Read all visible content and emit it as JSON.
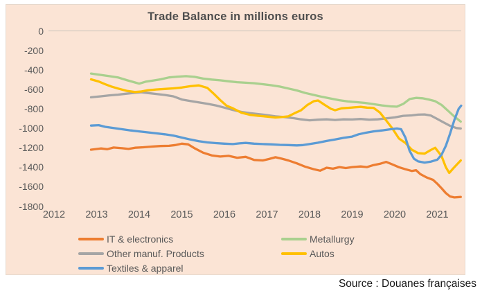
{
  "title": "Trade Balance in millions euros",
  "source": "Source : Douanes françaises",
  "colors": {
    "background": "#FBE4D5",
    "axis_text": "#595959",
    "title_text": "#4E4E4E",
    "zero_line": "#D8CCC2",
    "orange": "#ED7D31",
    "green": "#A9D08E",
    "gray": "#A5A5A5",
    "yellow": "#FFC000",
    "blue": "#5B9BD5"
  },
  "axes": {
    "y_ticks": [
      "0",
      "-200",
      "-400",
      "-600",
      "-800",
      "-1000",
      "-1200",
      "-1400",
      "-1600",
      "-1800"
    ],
    "x_ticks": [
      "2012",
      "2013",
      "2014",
      "2015",
      "2016",
      "2017",
      "2018",
      "2019",
      "2020",
      "2021"
    ]
  },
  "legend": {
    "columns": [
      [
        {
          "label": "IT & electronics",
          "color": "#ED7D31"
        },
        {
          "label": "Other manuf. Products",
          "color": "#A5A5A5"
        },
        {
          "label": "Textiles & apparel",
          "color": "#5B9BD5"
        }
      ],
      [
        {
          "label": "Metallurgy",
          "color": "#A9D08E"
        },
        {
          "label": "Autos",
          "color": "#FFC000"
        }
      ]
    ]
  },
  "chart_data": {
    "type": "line",
    "title": "Trade Balance in millions euros",
    "xlabel": "",
    "ylabel": "millions euros",
    "ylim": [
      -1800,
      0
    ],
    "xlim": [
      2012,
      2021.6
    ],
    "grid": "zero-line-only",
    "legend_position": "bottom",
    "x_unit": "year (monthly data, ~2013-01 to ~2021-08)",
    "series": [
      {
        "name": "IT & electronics",
        "color": "#ED7D31",
        "points": [
          [
            2012.87,
            -1220
          ],
          [
            2013.1,
            -1207
          ],
          [
            2013.25,
            -1215
          ],
          [
            2013.4,
            -1198
          ],
          [
            2013.6,
            -1205
          ],
          [
            2013.75,
            -1212
          ],
          [
            2013.9,
            -1200
          ],
          [
            2014.1,
            -1195
          ],
          [
            2014.3,
            -1188
          ],
          [
            2014.5,
            -1182
          ],
          [
            2014.7,
            -1180
          ],
          [
            2014.85,
            -1172
          ],
          [
            2015.0,
            -1158
          ],
          [
            2015.15,
            -1165
          ],
          [
            2015.3,
            -1205
          ],
          [
            2015.5,
            -1250
          ],
          [
            2015.7,
            -1278
          ],
          [
            2015.9,
            -1290
          ],
          [
            2016.1,
            -1283
          ],
          [
            2016.3,
            -1302
          ],
          [
            2016.5,
            -1293
          ],
          [
            2016.7,
            -1325
          ],
          [
            2016.9,
            -1330
          ],
          [
            2017.05,
            -1315
          ],
          [
            2017.2,
            -1297
          ],
          [
            2017.35,
            -1312
          ],
          [
            2017.5,
            -1330
          ],
          [
            2017.7,
            -1360
          ],
          [
            2017.9,
            -1395
          ],
          [
            2018.1,
            -1420
          ],
          [
            2018.25,
            -1435
          ],
          [
            2018.4,
            -1405
          ],
          [
            2018.55,
            -1415
          ],
          [
            2018.7,
            -1398
          ],
          [
            2018.85,
            -1408
          ],
          [
            2019.0,
            -1398
          ],
          [
            2019.2,
            -1392
          ],
          [
            2019.35,
            -1398
          ],
          [
            2019.5,
            -1378
          ],
          [
            2019.65,
            -1365
          ],
          [
            2019.8,
            -1345
          ],
          [
            2019.95,
            -1372
          ],
          [
            2020.1,
            -1400
          ],
          [
            2020.25,
            -1420
          ],
          [
            2020.4,
            -1438
          ],
          [
            2020.5,
            -1430
          ],
          [
            2020.6,
            -1470
          ],
          [
            2020.75,
            -1505
          ],
          [
            2020.9,
            -1530
          ],
          [
            2021.0,
            -1570
          ],
          [
            2021.1,
            -1615
          ],
          [
            2021.2,
            -1665
          ],
          [
            2021.3,
            -1700
          ],
          [
            2021.4,
            -1710
          ],
          [
            2021.55,
            -1705
          ]
        ]
      },
      {
        "name": "Metallurgy",
        "color": "#A9D08E",
        "points": [
          [
            2012.87,
            -438
          ],
          [
            2013.1,
            -452
          ],
          [
            2013.3,
            -465
          ],
          [
            2013.5,
            -478
          ],
          [
            2013.7,
            -505
          ],
          [
            2013.9,
            -530
          ],
          [
            2014.0,
            -542
          ],
          [
            2014.15,
            -522
          ],
          [
            2014.3,
            -512
          ],
          [
            2014.5,
            -498
          ],
          [
            2014.7,
            -478
          ],
          [
            2014.9,
            -470
          ],
          [
            2015.1,
            -465
          ],
          [
            2015.3,
            -472
          ],
          [
            2015.5,
            -490
          ],
          [
            2015.7,
            -500
          ],
          [
            2015.9,
            -508
          ],
          [
            2016.1,
            -518
          ],
          [
            2016.3,
            -527
          ],
          [
            2016.5,
            -533
          ],
          [
            2016.7,
            -538
          ],
          [
            2016.9,
            -548
          ],
          [
            2017.1,
            -558
          ],
          [
            2017.3,
            -572
          ],
          [
            2017.5,
            -592
          ],
          [
            2017.7,
            -612
          ],
          [
            2017.9,
            -638
          ],
          [
            2018.1,
            -658
          ],
          [
            2018.3,
            -678
          ],
          [
            2018.5,
            -695
          ],
          [
            2018.7,
            -712
          ],
          [
            2018.9,
            -725
          ],
          [
            2019.1,
            -732
          ],
          [
            2019.3,
            -740
          ],
          [
            2019.5,
            -752
          ],
          [
            2019.7,
            -765
          ],
          [
            2019.9,
            -775
          ],
          [
            2020.05,
            -778
          ],
          [
            2020.2,
            -750
          ],
          [
            2020.35,
            -700
          ],
          [
            2020.5,
            -688
          ],
          [
            2020.65,
            -692
          ],
          [
            2020.8,
            -705
          ],
          [
            2020.95,
            -722
          ],
          [
            2021.1,
            -760
          ],
          [
            2021.25,
            -820
          ],
          [
            2021.4,
            -880
          ],
          [
            2021.55,
            -932
          ]
        ]
      },
      {
        "name": "Other manuf. Products",
        "color": "#A5A5A5",
        "points": [
          [
            2012.87,
            -682
          ],
          [
            2013.1,
            -672
          ],
          [
            2013.3,
            -662
          ],
          [
            2013.5,
            -655
          ],
          [
            2013.7,
            -645
          ],
          [
            2013.9,
            -635
          ],
          [
            2014.05,
            -630
          ],
          [
            2014.2,
            -638
          ],
          [
            2014.4,
            -648
          ],
          [
            2014.6,
            -658
          ],
          [
            2014.8,
            -672
          ],
          [
            2015.0,
            -705
          ],
          [
            2015.2,
            -720
          ],
          [
            2015.4,
            -735
          ],
          [
            2015.6,
            -748
          ],
          [
            2015.8,
            -765
          ],
          [
            2016.0,
            -788
          ],
          [
            2016.2,
            -812
          ],
          [
            2016.4,
            -832
          ],
          [
            2016.6,
            -845
          ],
          [
            2016.8,
            -855
          ],
          [
            2017.0,
            -865
          ],
          [
            2017.2,
            -878
          ],
          [
            2017.4,
            -885
          ],
          [
            2017.6,
            -895
          ],
          [
            2017.8,
            -908
          ],
          [
            2018.0,
            -918
          ],
          [
            2018.2,
            -912
          ],
          [
            2018.4,
            -908
          ],
          [
            2018.6,
            -915
          ],
          [
            2018.8,
            -908
          ],
          [
            2019.0,
            -910
          ],
          [
            2019.2,
            -905
          ],
          [
            2019.4,
            -912
          ],
          [
            2019.6,
            -908
          ],
          [
            2019.8,
            -898
          ],
          [
            2020.0,
            -888
          ],
          [
            2020.2,
            -872
          ],
          [
            2020.4,
            -868
          ],
          [
            2020.55,
            -860
          ],
          [
            2020.7,
            -858
          ],
          [
            2020.85,
            -870
          ],
          [
            2021.0,
            -905
          ],
          [
            2021.15,
            -940
          ],
          [
            2021.3,
            -975
          ],
          [
            2021.45,
            -998
          ],
          [
            2021.55,
            -1002
          ]
        ]
      },
      {
        "name": "Autos",
        "color": "#FFC000",
        "points": [
          [
            2012.87,
            -498
          ],
          [
            2013.05,
            -520
          ],
          [
            2013.2,
            -548
          ],
          [
            2013.35,
            -572
          ],
          [
            2013.5,
            -592
          ],
          [
            2013.7,
            -615
          ],
          [
            2013.9,
            -628
          ],
          [
            2014.05,
            -622
          ],
          [
            2014.2,
            -610
          ],
          [
            2014.4,
            -602
          ],
          [
            2014.6,
            -596
          ],
          [
            2014.8,
            -590
          ],
          [
            2015.0,
            -582
          ],
          [
            2015.2,
            -568
          ],
          [
            2015.4,
            -560
          ],
          [
            2015.6,
            -585
          ],
          [
            2015.75,
            -645
          ],
          [
            2015.9,
            -710
          ],
          [
            2016.05,
            -768
          ],
          [
            2016.2,
            -795
          ],
          [
            2016.4,
            -840
          ],
          [
            2016.6,
            -862
          ],
          [
            2016.8,
            -872
          ],
          [
            2017.0,
            -880
          ],
          [
            2017.2,
            -890
          ],
          [
            2017.35,
            -885
          ],
          [
            2017.5,
            -878
          ],
          [
            2017.65,
            -845
          ],
          [
            2017.8,
            -815
          ],
          [
            2017.95,
            -760
          ],
          [
            2018.1,
            -722
          ],
          [
            2018.2,
            -715
          ],
          [
            2018.35,
            -758
          ],
          [
            2018.5,
            -800
          ],
          [
            2018.6,
            -815
          ],
          [
            2018.75,
            -795
          ],
          [
            2018.9,
            -790
          ],
          [
            2019.05,
            -785
          ],
          [
            2019.2,
            -780
          ],
          [
            2019.35,
            -788
          ],
          [
            2019.5,
            -790
          ],
          [
            2019.65,
            -838
          ],
          [
            2019.8,
            -920
          ],
          [
            2019.95,
            -1005
          ],
          [
            2020.1,
            -1105
          ],
          [
            2020.25,
            -1150
          ],
          [
            2020.4,
            -1220
          ],
          [
            2020.55,
            -1255
          ],
          [
            2020.7,
            -1260
          ],
          [
            2020.85,
            -1222
          ],
          [
            2020.95,
            -1200
          ],
          [
            2021.1,
            -1285
          ],
          [
            2021.2,
            -1400
          ],
          [
            2021.28,
            -1458
          ],
          [
            2021.38,
            -1408
          ],
          [
            2021.55,
            -1330
          ]
        ]
      },
      {
        "name": "Textiles & apparel",
        "color": "#5B9BD5",
        "points": [
          [
            2012.87,
            -972
          ],
          [
            2013.05,
            -968
          ],
          [
            2013.2,
            -985
          ],
          [
            2013.4,
            -998
          ],
          [
            2013.6,
            -1010
          ],
          [
            2013.8,
            -1022
          ],
          [
            2014.0,
            -1032
          ],
          [
            2014.2,
            -1042
          ],
          [
            2014.4,
            -1052
          ],
          [
            2014.6,
            -1062
          ],
          [
            2014.8,
            -1075
          ],
          [
            2015.0,
            -1095
          ],
          [
            2015.2,
            -1115
          ],
          [
            2015.4,
            -1132
          ],
          [
            2015.6,
            -1145
          ],
          [
            2015.8,
            -1152
          ],
          [
            2016.0,
            -1158
          ],
          [
            2016.2,
            -1162
          ],
          [
            2016.35,
            -1155
          ],
          [
            2016.5,
            -1150
          ],
          [
            2016.7,
            -1158
          ],
          [
            2016.9,
            -1162
          ],
          [
            2017.1,
            -1165
          ],
          [
            2017.3,
            -1170
          ],
          [
            2017.5,
            -1172
          ],
          [
            2017.7,
            -1176
          ],
          [
            2017.85,
            -1172
          ],
          [
            2018.0,
            -1162
          ],
          [
            2018.2,
            -1148
          ],
          [
            2018.4,
            -1130
          ],
          [
            2018.6,
            -1115
          ],
          [
            2018.8,
            -1098
          ],
          [
            2019.0,
            -1085
          ],
          [
            2019.15,
            -1062
          ],
          [
            2019.3,
            -1048
          ],
          [
            2019.5,
            -1032
          ],
          [
            2019.7,
            -1022
          ],
          [
            2019.9,
            -1010
          ],
          [
            2020.05,
            -1002
          ],
          [
            2020.15,
            -1010
          ],
          [
            2020.25,
            -1095
          ],
          [
            2020.35,
            -1232
          ],
          [
            2020.45,
            -1312
          ],
          [
            2020.55,
            -1340
          ],
          [
            2020.7,
            -1352
          ],
          [
            2020.85,
            -1342
          ],
          [
            2021.0,
            -1322
          ],
          [
            2021.1,
            -1272
          ],
          [
            2021.2,
            -1180
          ],
          [
            2021.3,
            -1055
          ],
          [
            2021.4,
            -915
          ],
          [
            2021.5,
            -800
          ],
          [
            2021.56,
            -768
          ]
        ]
      }
    ]
  }
}
